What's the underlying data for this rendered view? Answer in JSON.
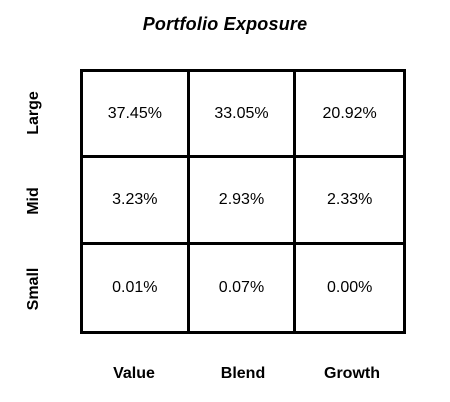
{
  "chart_data": {
    "type": "heatmap",
    "title": "Portfolio Exposure",
    "rows": [
      "Large",
      "Mid",
      "Small"
    ],
    "columns": [
      "Value",
      "Blend",
      "Growth"
    ],
    "cells": [
      [
        "37.45%",
        "33.05%",
        "20.92%"
      ],
      [
        "3.23%",
        "2.93%",
        "2.33%"
      ],
      [
        "0.01%",
        "0.07%",
        "0.00%"
      ]
    ],
    "values_percent": [
      [
        37.45,
        33.05,
        20.92
      ],
      [
        3.23,
        2.93,
        2.33
      ],
      [
        0.01,
        0.07,
        0.0
      ]
    ],
    "grid": true,
    "legend": "none"
  }
}
